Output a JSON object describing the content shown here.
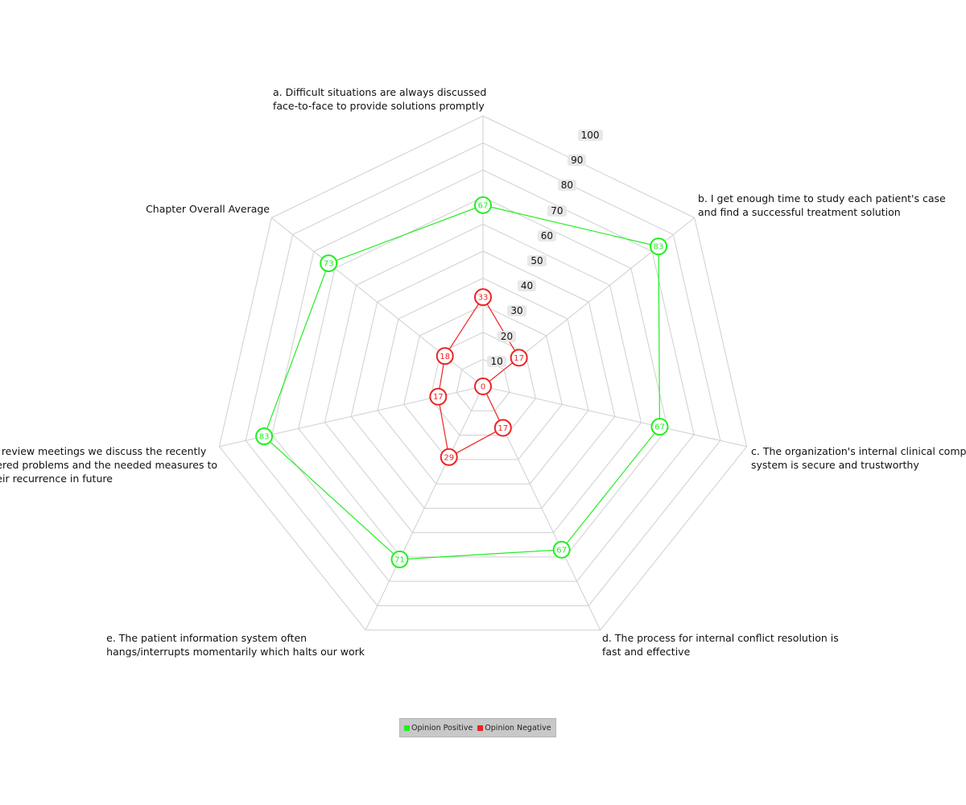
{
  "chart_data": {
    "type": "radar",
    "title": "",
    "rmin": 0,
    "rmax": 100,
    "ticks": [
      "10",
      "20",
      "30",
      "40",
      "50",
      "60",
      "70",
      "80",
      "90",
      "100"
    ],
    "axes": [
      {
        "id": "a",
        "lines": [
          "a. Difficult situations are always discussed",
          "face-to-face to provide solutions promptly"
        ]
      },
      {
        "id": "b",
        "lines": [
          "b. I get enough time to study each patient's case",
          "and find a successful treatment solution"
        ]
      },
      {
        "id": "c",
        "lines": [
          "c. The organization's internal clinical complaint",
          "system is secure and trustworthy"
        ]
      },
      {
        "id": "d",
        "lines": [
          "d. The process for internal conflict resolution is",
          "fast and effective"
        ]
      },
      {
        "id": "e",
        "lines": [
          "e. The patient information system often",
          "hangs/interrupts momentarily which halts our work"
        ]
      },
      {
        "id": "f",
        "lines": [
          "f. During review meetings we discuss the recently",
          "encountered problems and the needed measures to",
          "avoid their recurrence in future"
        ]
      },
      {
        "id": "avg",
        "lines": [
          "Chapter Overall Average"
        ]
      }
    ],
    "series": [
      {
        "name": "Opinion Positive",
        "color": "#22ee22",
        "values": [
          67,
          83,
          67,
          67,
          71,
          83,
          73
        ]
      },
      {
        "name": "Opinion Negative",
        "color": "#ee2222",
        "values": [
          33,
          17,
          0,
          17,
          29,
          17,
          18
        ]
      }
    ],
    "grid": true,
    "legend_position": "bottom-center"
  }
}
